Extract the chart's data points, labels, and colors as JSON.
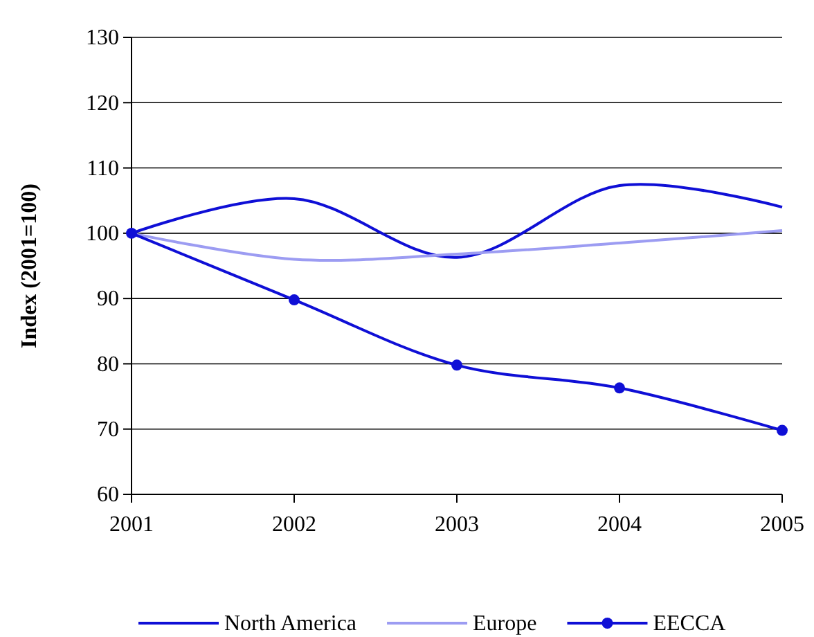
{
  "chart_data": {
    "type": "line",
    "ylabel": "Index (2001=100)",
    "x": [
      2001,
      2002,
      2003,
      2004,
      2005
    ],
    "xlim": [
      2001,
      2005
    ],
    "xticks": [
      2001,
      2002,
      2003,
      2004,
      2005
    ],
    "ylim": [
      60,
      130
    ],
    "yticks": [
      60,
      70,
      80,
      90,
      100,
      110,
      120,
      130
    ],
    "grid": "y",
    "legend": "bottom",
    "series": [
      {
        "name": "North America",
        "color": "#0f0fd6",
        "values": [
          100,
          105.3,
          96.3,
          107.3,
          104
        ],
        "marker": "none"
      },
      {
        "name": "Europe",
        "color": "#9c9cf2",
        "values": [
          100,
          96,
          96.8,
          98.5,
          100.4
        ],
        "marker": "none"
      },
      {
        "name": "EECCA",
        "color": "#0f0fd6",
        "values": [
          100,
          89.8,
          79.8,
          76.3,
          69.8
        ],
        "marker": "circle"
      }
    ]
  }
}
